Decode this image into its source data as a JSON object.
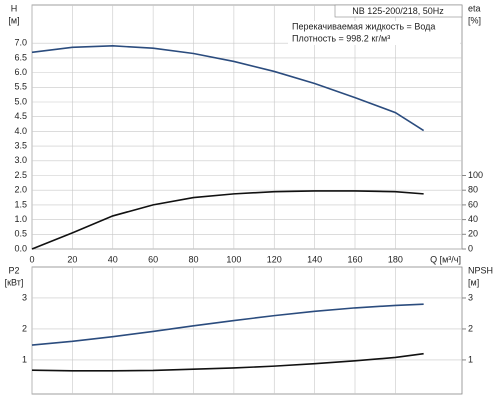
{
  "chart_data": [
    {
      "type": "line",
      "title": "NB 125-200/218, 50Hz",
      "annotations": [
        "Перекачиваемая жидкость = Вода",
        "Плотность = 998.2 кг/м³"
      ],
      "y_label": "H",
      "y_unit": "[м]",
      "y2_label": "eta",
      "y2_unit": "[%]",
      "x_label": "Q [м³/ч]",
      "x": [
        0,
        20,
        40,
        60,
        80,
        100,
        120,
        140,
        160,
        180,
        194
      ],
      "series": [
        {
          "color": "#2b4c7e",
          "values": [
            6.69,
            6.86,
            6.91,
            6.83,
            6.65,
            6.38,
            6.04,
            5.63,
            5.15,
            4.64,
            4.03
          ]
        },
        {
          "color": "#111111",
          "axis": "y2",
          "values": [
            0,
            22,
            45,
            60,
            70,
            75,
            78,
            79,
            79,
            78,
            75
          ]
        }
      ],
      "xlim": [
        0,
        213
      ],
      "xticks": [
        0,
        20,
        40,
        60,
        80,
        100,
        120,
        140,
        160,
        180
      ],
      "ylim": [
        0,
        8.3
      ],
      "yticks": [
        {
          "value": 0,
          "label": "0.0"
        },
        0.5,
        {
          "value": 1,
          "label": "1.0"
        },
        1.5,
        {
          "value": 2,
          "label": "2.0"
        },
        2.5,
        {
          "value": 3,
          "label": "3.0"
        },
        3.5,
        {
          "value": 4,
          "label": "4.0"
        },
        4.5,
        {
          "value": 5,
          "label": "5.0"
        },
        5.5,
        {
          "value": 6,
          "label": "6.0"
        },
        6.5,
        {
          "value": 7,
          "label": "7.0"
        }
      ],
      "y2lim": [
        0,
        332
      ],
      "y2ticks": [
        0,
        20,
        40,
        60,
        80,
        100
      ],
      "grid": true,
      "show_xtick_labels": true
    },
    {
      "type": "line",
      "y_label": "P2",
      "y_unit": "[кВт]",
      "y2_label": "NPSH",
      "y2_unit": "[м]",
      "x": [
        0,
        20,
        40,
        60,
        80,
        100,
        120,
        140,
        160,
        180,
        194
      ],
      "series": [
        {
          "color": "#2b4c7e",
          "values": [
            1.48,
            1.6,
            1.75,
            1.92,
            2.1,
            2.27,
            2.43,
            2.57,
            2.68,
            2.76,
            2.8
          ]
        },
        {
          "color": "#111111",
          "axis": "y2",
          "values": [
            0.67,
            0.65,
            0.65,
            0.66,
            0.7,
            0.74,
            0.8,
            0.88,
            0.97,
            1.08,
            1.2
          ]
        }
      ],
      "xlim": [
        0,
        213
      ],
      "xticks": [
        0,
        20,
        40,
        60,
        80,
        100,
        120,
        140,
        160,
        180
      ],
      "ylim": [
        -0.1,
        4
      ],
      "yticks": [
        1,
        2,
        3
      ],
      "y2lim": [
        -0.1,
        4
      ],
      "y2ticks": [
        1,
        2,
        3
      ],
      "grid": true,
      "show_xtick_labels": false
    }
  ]
}
